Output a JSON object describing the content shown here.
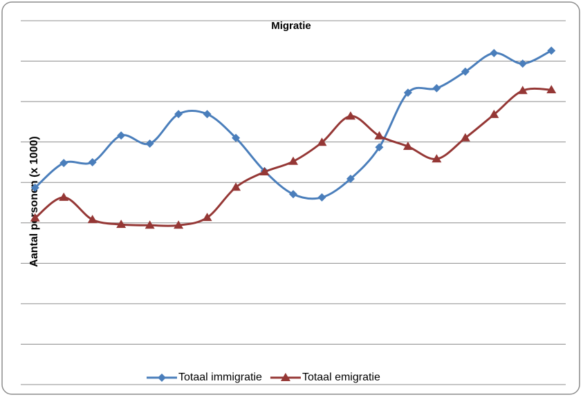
{
  "chart_data": {
    "type": "line",
    "title": "Migratie",
    "y_label": "Aantal personen (x 1000)",
    "categories": [
      null,
      null,
      null,
      null,
      null,
      null,
      null,
      null,
      null,
      null,
      null,
      null,
      null,
      null,
      null,
      null,
      null,
      null,
      null
    ],
    "series": [
      {
        "name": "Totaal immigratie",
        "color": "#4a7ebb",
        "marker": "diamond",
        "values": [
          4.87,
          5.48,
          5.5,
          6.16,
          5.96,
          6.69,
          6.69,
          6.1,
          5.28,
          4.71,
          4.63,
          5.09,
          5.87,
          7.22,
          7.33,
          7.74,
          8.2,
          7.94,
          8.26
        ]
      },
      {
        "name": "Totaal emigratie",
        "color": "#953735",
        "marker": "triangle",
        "values": [
          4.12,
          4.63,
          4.08,
          3.96,
          3.94,
          3.94,
          4.13,
          4.88,
          5.26,
          5.52,
          5.99,
          6.64,
          6.15,
          5.89,
          5.58,
          6.1,
          6.68,
          7.27,
          7.29
        ]
      }
    ],
    "ylim": [
      0,
      9
    ],
    "yticks": [
      0,
      1,
      2,
      3,
      4,
      5,
      6,
      7,
      8,
      9
    ],
    "grid": true,
    "smooth": true,
    "legend": "bottom"
  }
}
